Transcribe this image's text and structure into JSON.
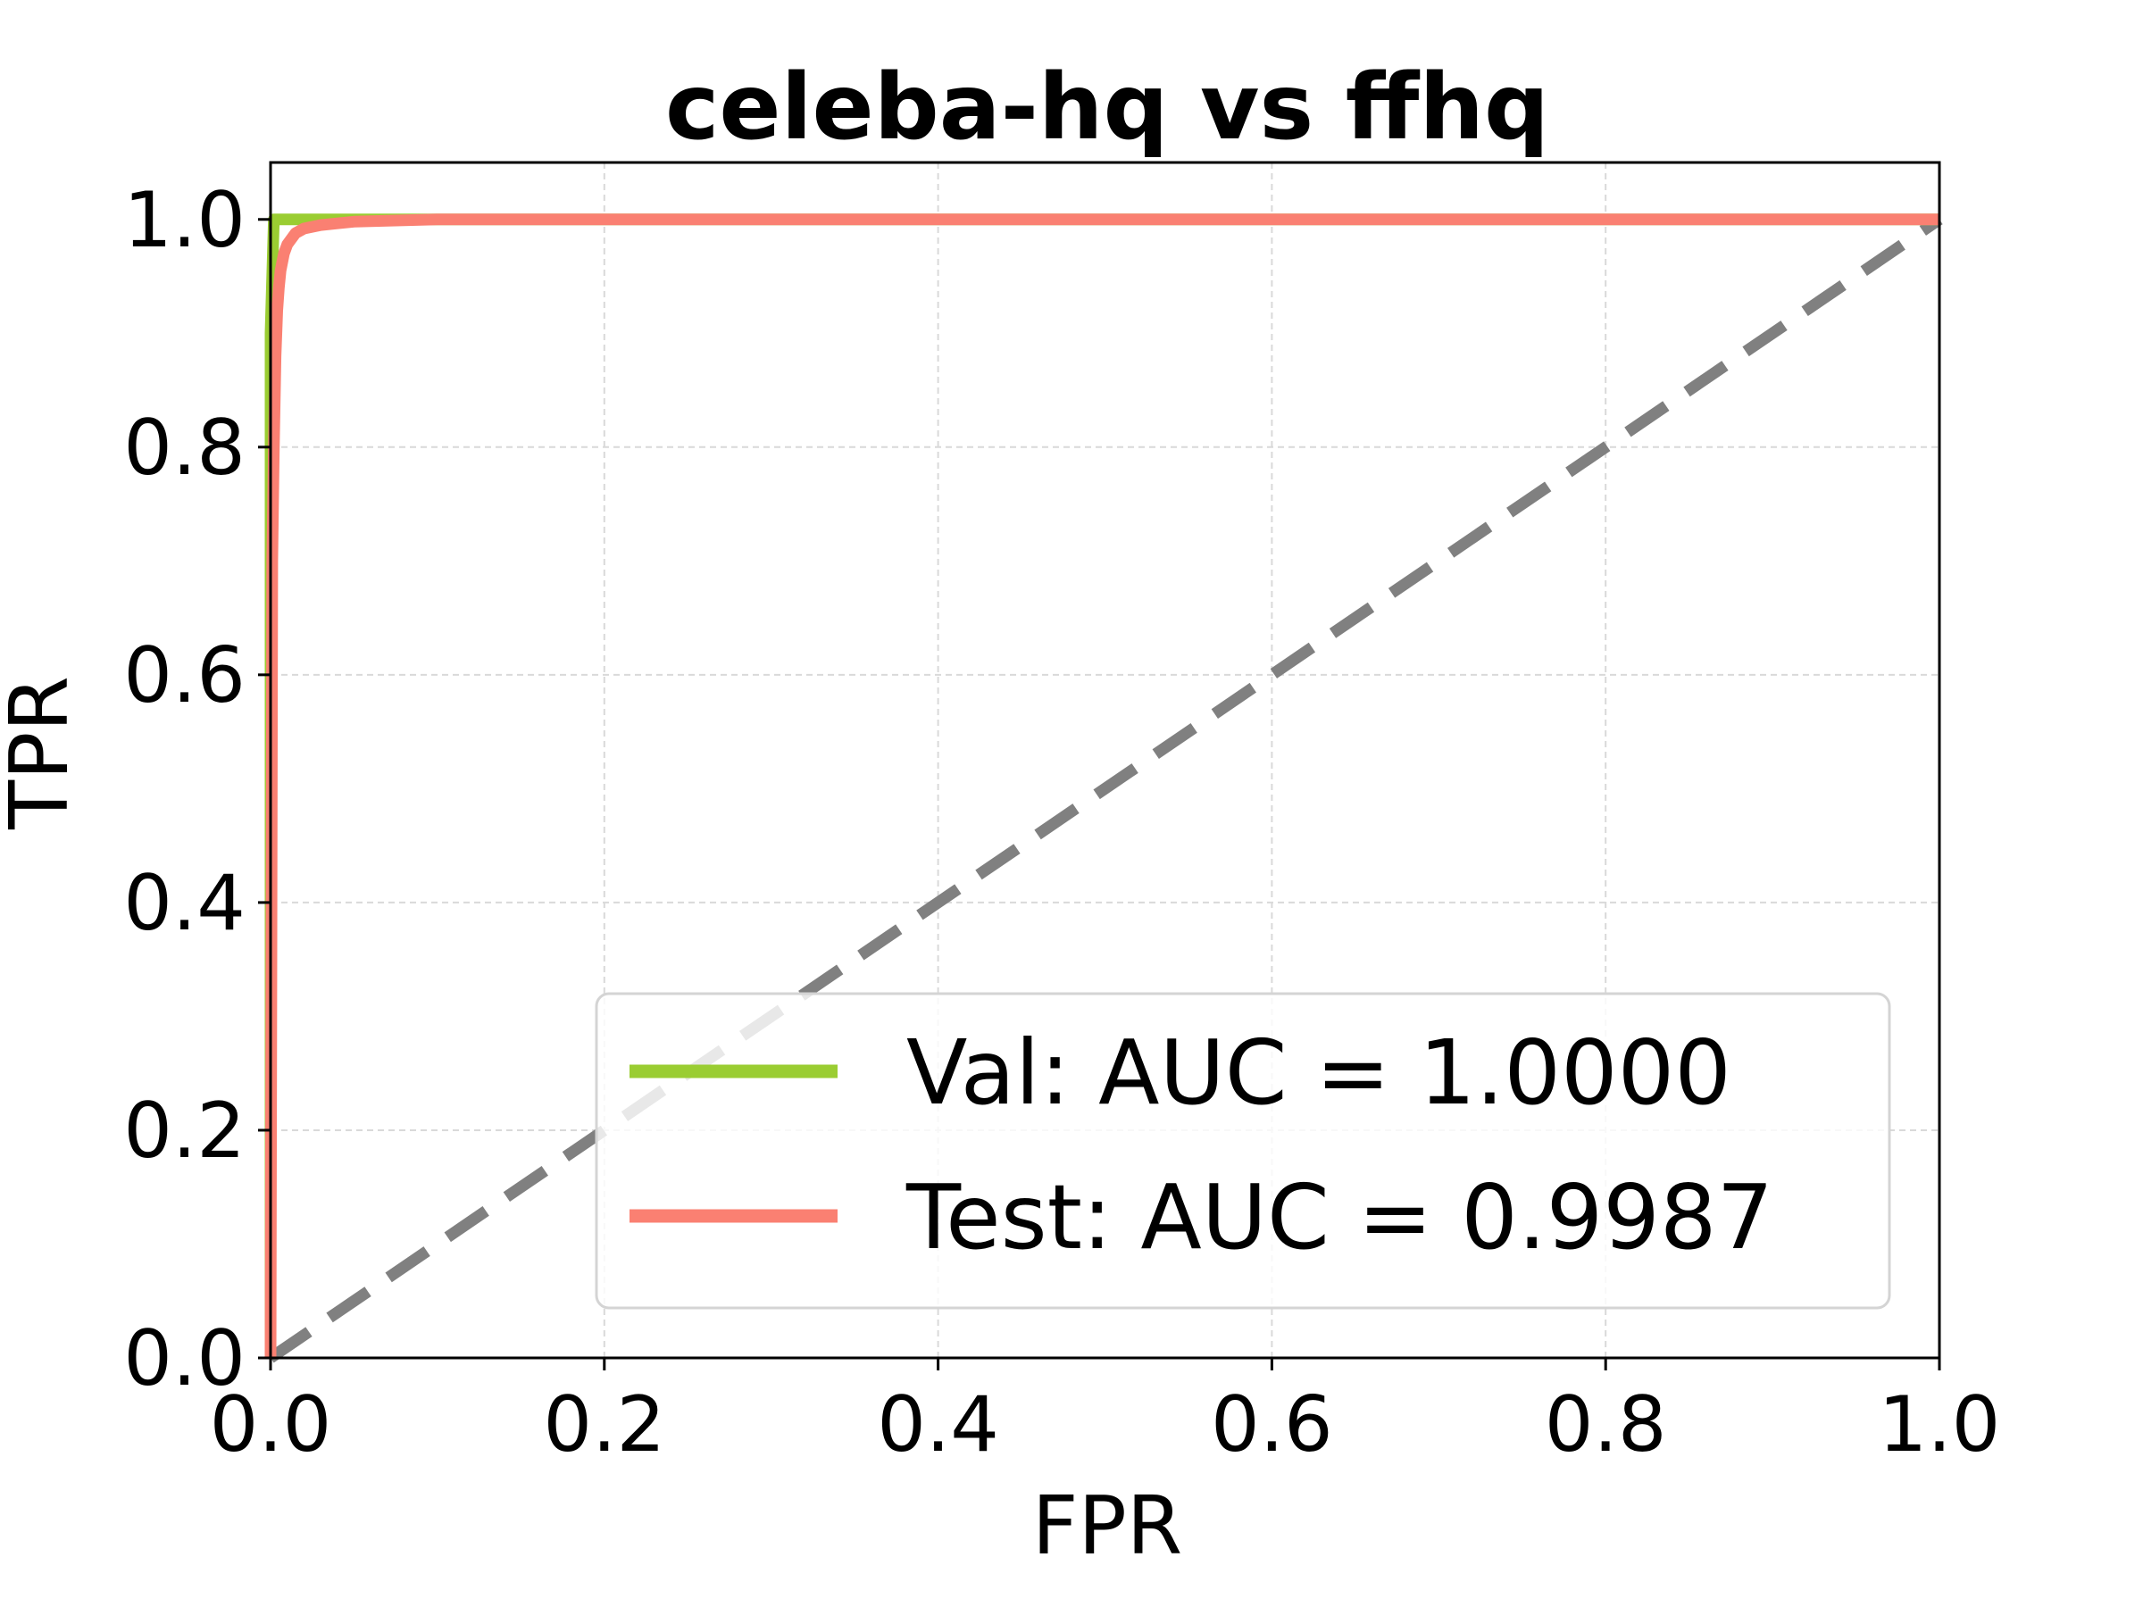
{
  "chart_data": {
    "type": "line",
    "title": "celeba-hq vs ffhq",
    "xlabel": "FPR",
    "ylabel": "TPR",
    "xlim": [
      0.0,
      1.0
    ],
    "ylim": [
      0.0,
      1.05
    ],
    "xticks": [
      "0.0",
      "0.2",
      "0.4",
      "0.6",
      "0.8",
      "1.0"
    ],
    "yticks": [
      "0.0",
      "0.2",
      "0.4",
      "0.6",
      "0.8",
      "1.0"
    ],
    "grid": true,
    "legend_position": "lower-right",
    "series": [
      {
        "name": "Val: AUC = 1.0000",
        "color": "#9acd32",
        "x": [
          0.0,
          0.0,
          0.002,
          1.0
        ],
        "y": [
          0.0,
          0.9,
          1.0,
          1.0
        ]
      },
      {
        "name": "Test: AUC = 0.9987",
        "color": "#fa8072",
        "x": [
          0.0,
          0.001,
          0.002,
          0.003,
          0.004,
          0.005,
          0.006,
          0.008,
          0.01,
          0.015,
          0.02,
          0.03,
          0.05,
          0.1,
          1.0
        ],
        "y": [
          0.0,
          0.7,
          0.8,
          0.88,
          0.92,
          0.94,
          0.955,
          0.97,
          0.978,
          0.988,
          0.992,
          0.995,
          0.998,
          1.0,
          1.0
        ]
      }
    ],
    "reference_line": {
      "color": "#808080",
      "style": "dashed",
      "x": [
        0.0,
        1.0
      ],
      "y": [
        0.0,
        1.0
      ]
    }
  }
}
